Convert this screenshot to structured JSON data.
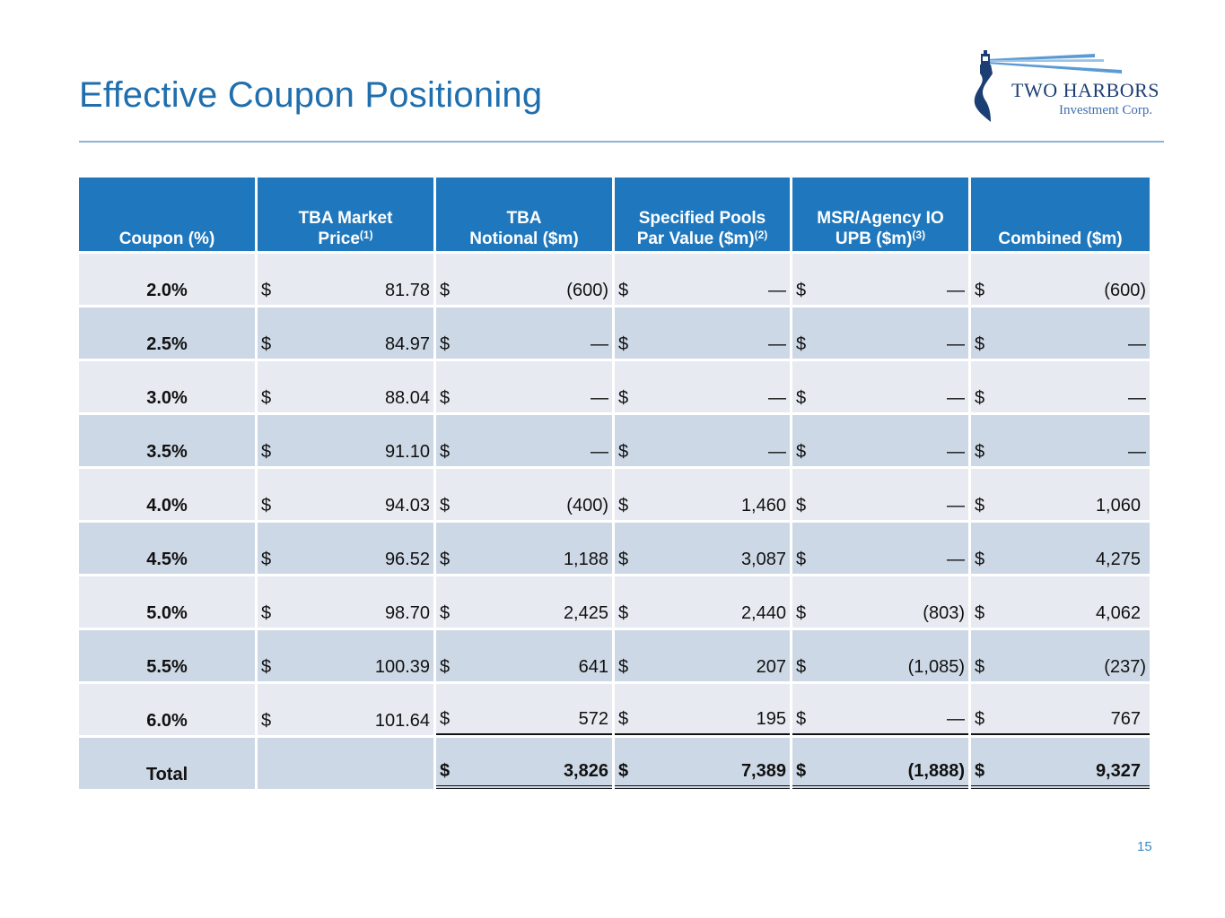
{
  "page": {
    "title": "Effective Coupon Positioning",
    "page_number": "15"
  },
  "logo": {
    "line1": "TWO HARBORS",
    "line2": "Investment Corp."
  },
  "table": {
    "headers": {
      "coupon": "Coupon (%)",
      "tba_price_a": "TBA Market",
      "tba_price_b": "Price",
      "tba_price_note": "(1)",
      "tba_notional_a": "TBA",
      "tba_notional_b": "Notional ($m)",
      "spec_a": "Specified Pools",
      "spec_b": "Par Value ($m)",
      "spec_note": "(2)",
      "msr_a": "MSR/Agency IO",
      "msr_b": "UPB ($m)",
      "msr_note": "(3)",
      "combined": "Combined ($m)"
    },
    "currency": "$",
    "rows": [
      {
        "coupon": "2.0%",
        "price": "81.78",
        "notional": "(600)",
        "spec": "—",
        "msr": "—",
        "combined": "(600)"
      },
      {
        "coupon": "2.5%",
        "price": "84.97",
        "notional": "—",
        "spec": "—",
        "msr": "—",
        "combined": "—"
      },
      {
        "coupon": "3.0%",
        "price": "88.04",
        "notional": "—",
        "spec": "—",
        "msr": "—",
        "combined": "—"
      },
      {
        "coupon": "3.5%",
        "price": "91.10",
        "notional": "—",
        "spec": "—",
        "msr": "—",
        "combined": "—"
      },
      {
        "coupon": "4.0%",
        "price": "94.03",
        "notional": "(400)",
        "spec": "1,460",
        "msr": "—",
        "combined": "1,060"
      },
      {
        "coupon": "4.5%",
        "price": "96.52",
        "notional": "1,188",
        "spec": "3,087",
        "msr": "—",
        "combined": "4,275"
      },
      {
        "coupon": "5.0%",
        "price": "98.70",
        "notional": "2,425",
        "spec": "2,440",
        "msr": "(803)",
        "combined": "4,062"
      },
      {
        "coupon": "5.5%",
        "price": "100.39",
        "notional": "641",
        "spec": "207",
        "msr": "(1,085)",
        "combined": "(237)"
      },
      {
        "coupon": "6.0%",
        "price": "101.64",
        "notional": "572",
        "spec": "195",
        "msr": "—",
        "combined": "767"
      }
    ],
    "total": {
      "label": "Total",
      "notional": "3,826",
      "spec": "7,389",
      "msr": "(1,888)",
      "combined": "9,327"
    }
  }
}
